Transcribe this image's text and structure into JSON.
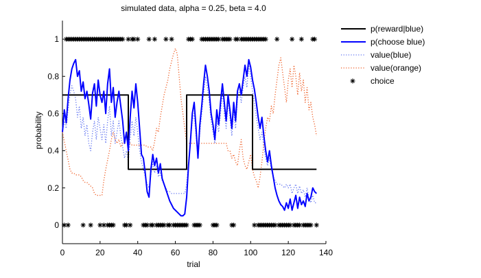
{
  "chart_data": {
    "type": "line",
    "title": "simulated data, alpha = 0.25, beta = 4.0",
    "xlabel": "trial",
    "ylabel": "probability",
    "xlim": [
      0,
      140
    ],
    "ylim": [
      -0.1,
      1.1
    ],
    "xticks": [
      0,
      20,
      40,
      60,
      80,
      100,
      120,
      140
    ],
    "yticks": [
      0,
      0.2,
      0.4,
      0.6,
      0.8,
      1
    ],
    "ytick_labels": [
      "0",
      "0.2",
      "0.4",
      "0.6",
      "0.8",
      "1"
    ],
    "grid": false,
    "legend_placement": "outside-top-right",
    "series": [
      {
        "name": "p(reward|blue)",
        "style": "solid",
        "color": "#000000",
        "width": 2,
        "x": [
          0,
          35,
          35,
          66,
          66,
          101,
          101,
          135
        ],
        "y": [
          0.7,
          0.7,
          0.3,
          0.3,
          0.7,
          0.7,
          0.3,
          0.3
        ]
      },
      {
        "name": "p(choose blue)",
        "style": "solid",
        "color": "#0000ff",
        "width": 2,
        "x": [
          0,
          1,
          2,
          3,
          4,
          5,
          6,
          7,
          8,
          9,
          10,
          11,
          12,
          13,
          14,
          15,
          16,
          17,
          18,
          19,
          20,
          21,
          22,
          23,
          24,
          25,
          26,
          27,
          28,
          29,
          30,
          31,
          32,
          33,
          34,
          35,
          36,
          37,
          38,
          39,
          40,
          41,
          42,
          43,
          44,
          45,
          46,
          47,
          48,
          49,
          50,
          51,
          52,
          53,
          54,
          55,
          56,
          57,
          58,
          59,
          60,
          61,
          62,
          63,
          64,
          65,
          66,
          67,
          68,
          69,
          70,
          71,
          72,
          73,
          74,
          75,
          76,
          77,
          78,
          79,
          80,
          81,
          82,
          83,
          84,
          85,
          86,
          87,
          88,
          89,
          90,
          91,
          92,
          93,
          94,
          95,
          96,
          97,
          98,
          99,
          100,
          101,
          102,
          103,
          104,
          105,
          106,
          107,
          108,
          109,
          110,
          111,
          112,
          113,
          114,
          115,
          116,
          117,
          118,
          119,
          120,
          121,
          122,
          123,
          124,
          125,
          126,
          127,
          128,
          129,
          130,
          131,
          132,
          133,
          134,
          135
        ],
        "y": [
          0.5,
          0.62,
          0.55,
          0.68,
          0.78,
          0.84,
          0.87,
          0.89,
          0.8,
          0.83,
          0.72,
          0.77,
          0.68,
          0.72,
          0.65,
          0.57,
          0.71,
          0.76,
          0.64,
          0.78,
          0.7,
          0.66,
          0.72,
          0.6,
          0.76,
          0.84,
          0.66,
          0.74,
          0.58,
          0.66,
          0.72,
          0.64,
          0.56,
          0.44,
          0.5,
          0.4,
          0.58,
          0.72,
          0.63,
          0.76,
          0.66,
          0.52,
          0.38,
          0.36,
          0.28,
          0.18,
          0.15,
          0.3,
          0.38,
          0.32,
          0.36,
          0.28,
          0.33,
          0.25,
          0.22,
          0.19,
          0.16,
          0.13,
          0.11,
          0.09,
          0.08,
          0.07,
          0.06,
          0.05,
          0.05,
          0.06,
          0.15,
          0.32,
          0.45,
          0.6,
          0.66,
          0.52,
          0.36,
          0.54,
          0.64,
          0.76,
          0.86,
          0.8,
          0.72,
          0.6,
          0.54,
          0.46,
          0.62,
          0.54,
          0.66,
          0.76,
          0.66,
          0.56,
          0.7,
          0.62,
          0.52,
          0.66,
          0.56,
          0.72,
          0.76,
          0.7,
          0.78,
          0.86,
          0.8,
          0.89,
          0.85,
          0.78,
          0.73,
          0.66,
          0.58,
          0.52,
          0.58,
          0.48,
          0.4,
          0.34,
          0.4,
          0.32,
          0.26,
          0.2,
          0.16,
          0.13,
          0.11,
          0.1,
          0.08,
          0.12,
          0.09,
          0.14,
          0.08,
          0.12,
          0.16,
          0.09,
          0.15,
          0.11,
          0.13,
          0.1,
          0.17,
          0.13,
          0.15,
          0.2,
          0.18,
          0.17
        ]
      },
      {
        "name": "value(blue)",
        "style": "dotted",
        "color": "#5b6ff0",
        "width": 1.3,
        "x": [
          0,
          1,
          2,
          3,
          4,
          5,
          6,
          7,
          8,
          9,
          10,
          11,
          12,
          13,
          14,
          15,
          16,
          17,
          18,
          19,
          20,
          21,
          22,
          23,
          24,
          25,
          26,
          27,
          28,
          29,
          30,
          31,
          32,
          33,
          34,
          35,
          36,
          37,
          38,
          39,
          40,
          41,
          42,
          43,
          44,
          45,
          46,
          47,
          48,
          49,
          50,
          51,
          52,
          53,
          54,
          55,
          56,
          57,
          58,
          59,
          60,
          61,
          62,
          63,
          64,
          65,
          66,
          67,
          68,
          69,
          70,
          71,
          72,
          73,
          74,
          75,
          76,
          77,
          78,
          79,
          80,
          81,
          82,
          83,
          84,
          85,
          86,
          87,
          88,
          89,
          90,
          91,
          92,
          93,
          94,
          95,
          96,
          97,
          98,
          99,
          100,
          101,
          102,
          103,
          104,
          105,
          106,
          107,
          108,
          109,
          110,
          111,
          112,
          113,
          114,
          115,
          116,
          117,
          118,
          119,
          120,
          121,
          122,
          123,
          124,
          125,
          126,
          127,
          128,
          129,
          130,
          131,
          132,
          133,
          134,
          135
        ],
        "y": [
          0.5,
          0.56,
          0.52,
          0.62,
          0.7,
          0.75,
          0.72,
          0.68,
          0.58,
          0.64,
          0.52,
          0.58,
          0.48,
          0.54,
          0.44,
          0.4,
          0.5,
          0.56,
          0.46,
          0.58,
          0.52,
          0.46,
          0.54,
          0.44,
          0.56,
          0.64,
          0.48,
          0.56,
          0.44,
          0.5,
          0.56,
          0.48,
          0.42,
          0.36,
          0.4,
          0.34,
          0.46,
          0.56,
          0.48,
          0.58,
          0.5,
          0.4,
          0.34,
          0.3,
          0.26,
          0.22,
          0.2,
          0.27,
          0.34,
          0.28,
          0.32,
          0.26,
          0.28,
          0.24,
          0.22,
          0.2,
          0.18,
          0.18,
          0.17,
          0.17,
          0.17,
          0.17,
          0.17,
          0.17,
          0.17,
          0.17,
          0.22,
          0.34,
          0.44,
          0.56,
          0.6,
          0.48,
          0.36,
          0.5,
          0.6,
          0.7,
          0.8,
          0.74,
          0.66,
          0.56,
          0.5,
          0.44,
          0.56,
          0.5,
          0.6,
          0.72,
          0.6,
          0.52,
          0.66,
          0.58,
          0.48,
          0.62,
          0.52,
          0.68,
          0.72,
          0.66,
          0.74,
          0.8,
          0.74,
          0.86,
          0.8,
          0.72,
          0.66,
          0.58,
          0.52,
          0.46,
          0.5,
          0.42,
          0.36,
          0.32,
          0.36,
          0.3,
          0.26,
          0.24,
          0.22,
          0.22,
          0.22,
          0.21,
          0.2,
          0.22,
          0.2,
          0.22,
          0.17,
          0.2,
          0.22,
          0.17,
          0.21,
          0.17,
          0.19,
          0.15,
          0.2,
          0.14,
          0.12,
          0.16,
          0.12,
          0.12
        ]
      },
      {
        "name": "value(orange)",
        "style": "dotted",
        "color": "#ee5a20",
        "width": 1.3,
        "x": [
          0,
          1,
          2,
          3,
          4,
          5,
          6,
          7,
          8,
          9,
          10,
          11,
          12,
          13,
          14,
          15,
          16,
          17,
          18,
          19,
          20,
          21,
          22,
          23,
          24,
          25,
          26,
          27,
          28,
          29,
          30,
          31,
          32,
          33,
          34,
          35,
          36,
          37,
          38,
          39,
          40,
          41,
          42,
          43,
          44,
          45,
          46,
          47,
          48,
          49,
          50,
          51,
          52,
          53,
          54,
          55,
          56,
          57,
          58,
          59,
          60,
          61,
          62,
          63,
          64,
          65,
          66,
          67,
          68,
          69,
          70,
          71,
          72,
          73,
          74,
          75,
          76,
          77,
          78,
          79,
          80,
          81,
          82,
          83,
          84,
          85,
          86,
          87,
          88,
          89,
          90,
          91,
          92,
          93,
          94,
          95,
          96,
          97,
          98,
          99,
          100,
          101,
          102,
          103,
          104,
          105,
          106,
          107,
          108,
          109,
          110,
          111,
          112,
          113,
          114,
          115,
          116,
          117,
          118,
          119,
          120,
          121,
          122,
          123,
          124,
          125,
          126,
          127,
          128,
          129,
          130,
          131,
          132,
          133,
          134,
          135
        ],
        "y": [
          0.5,
          0.45,
          0.4,
          0.35,
          0.3,
          0.28,
          0.28,
          0.27,
          0.27,
          0.27,
          0.26,
          0.24,
          0.23,
          0.23,
          0.22,
          0.21,
          0.2,
          0.17,
          0.16,
          0.16,
          0.16,
          0.16,
          0.24,
          0.3,
          0.35,
          0.4,
          0.46,
          0.5,
          0.46,
          0.44,
          0.46,
          0.42,
          0.44,
          0.44,
          0.44,
          0.44,
          0.44,
          0.43,
          0.43,
          0.43,
          0.43,
          0.43,
          0.43,
          0.43,
          0.43,
          0.42,
          0.42,
          0.42,
          0.4,
          0.45,
          0.52,
          0.5,
          0.58,
          0.64,
          0.7,
          0.74,
          0.78,
          0.84,
          0.88,
          0.92,
          0.95,
          0.92,
          0.8,
          0.68,
          0.6,
          0.52,
          0.44,
          0.44,
          0.44,
          0.44,
          0.44,
          0.44,
          0.44,
          0.44,
          0.44,
          0.44,
          0.44,
          0.44,
          0.44,
          0.44,
          0.44,
          0.44,
          0.44,
          0.44,
          0.44,
          0.44,
          0.44,
          0.44,
          0.4,
          0.4,
          0.36,
          0.38,
          0.34,
          0.32,
          0.4,
          0.46,
          0.36,
          0.32,
          0.3,
          0.34,
          0.38,
          0.3,
          0.26,
          0.24,
          0.2,
          0.26,
          0.34,
          0.44,
          0.52,
          0.58,
          0.56,
          0.64,
          0.6,
          0.7,
          0.78,
          0.86,
          0.9,
          0.82,
          0.74,
          0.66,
          0.78,
          0.84,
          0.74,
          0.86,
          0.8,
          0.7,
          0.82,
          0.72,
          0.78,
          0.66,
          0.74,
          0.62,
          0.66,
          0.58,
          0.54,
          0.48
        ]
      },
      {
        "name": "choice",
        "style": "marker",
        "marker": "*",
        "color": "#000000",
        "x": [
          2,
          3,
          4,
          5,
          6,
          7,
          8,
          9,
          10,
          11,
          12,
          13,
          14,
          15,
          16,
          17,
          18,
          19,
          20,
          21,
          22,
          23,
          24,
          25,
          26,
          27,
          28,
          29,
          30,
          31,
          32,
          35,
          37,
          38,
          40,
          46,
          49,
          55,
          58,
          67,
          68,
          69,
          74,
          75,
          76,
          77,
          78,
          79,
          80,
          81,
          82,
          83,
          85,
          86,
          87,
          88,
          89,
          92,
          93,
          95,
          96,
          97,
          98,
          99,
          100,
          101,
          102,
          103,
          104,
          105,
          106,
          107,
          108,
          114,
          122,
          127,
          133,
          134,
          1,
          3,
          11,
          15,
          20,
          22,
          24,
          25,
          26,
          27,
          33,
          34,
          36,
          43,
          44,
          45,
          47,
          48,
          50,
          51,
          52,
          53,
          54,
          56,
          57,
          59,
          60,
          61,
          62,
          63,
          64,
          65,
          66,
          70,
          71,
          72,
          73,
          80,
          81,
          82,
          90,
          91,
          102,
          104,
          105,
          106,
          107,
          108,
          109,
          110,
          111,
          112,
          113,
          115,
          116,
          117,
          118,
          119,
          120,
          121,
          123,
          124,
          125,
          126,
          128,
          129,
          130,
          131,
          132,
          135
        ],
        "y": [
          1,
          1,
          1,
          1,
          1,
          1,
          1,
          1,
          1,
          1,
          1,
          1,
          1,
          1,
          1,
          1,
          1,
          1,
          1,
          1,
          1,
          1,
          1,
          1,
          1,
          1,
          1,
          1,
          1,
          1,
          1,
          1,
          1,
          1,
          1,
          1,
          1,
          1,
          1,
          1,
          1,
          1,
          1,
          1,
          1,
          1,
          1,
          1,
          1,
          1,
          1,
          1,
          1,
          1,
          1,
          1,
          1,
          1,
          1,
          1,
          1,
          1,
          1,
          1,
          1,
          1,
          1,
          1,
          1,
          1,
          1,
          1,
          1,
          1,
          1,
          1,
          1,
          1,
          0,
          0,
          0,
          0,
          0,
          0,
          0,
          0,
          0,
          0,
          0,
          0,
          0,
          0,
          0,
          0,
          0,
          0,
          0,
          0,
          0,
          0,
          0,
          0,
          0,
          0,
          0,
          0,
          0,
          0,
          0,
          0,
          0,
          0,
          0,
          0,
          0,
          0,
          0,
          0,
          0,
          0,
          0,
          0,
          0,
          0,
          0,
          0,
          0,
          0,
          0,
          0,
          0,
          0,
          0,
          0,
          0,
          0,
          0,
          0,
          0,
          0,
          0,
          0,
          0,
          0,
          0,
          0,
          0,
          0
        ]
      }
    ]
  }
}
